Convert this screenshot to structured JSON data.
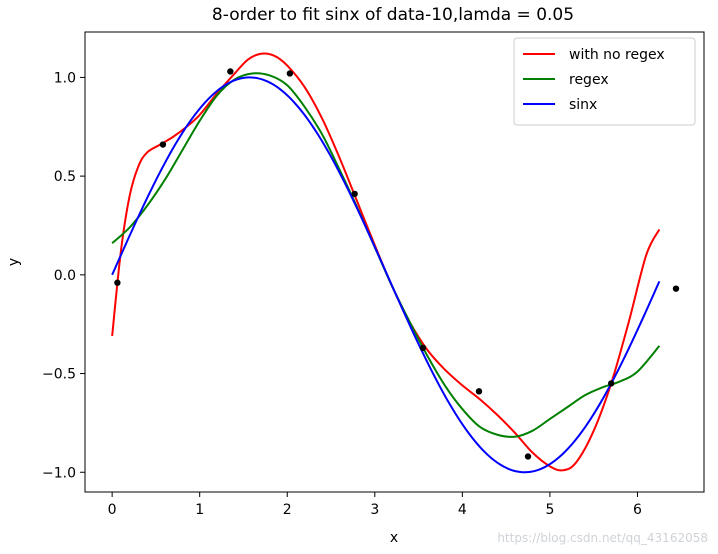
{
  "chart_data": {
    "type": "line",
    "title": "8-order to fit sinx of data-10,lamda = 0.05",
    "xlabel": "x",
    "ylabel": "y",
    "xlim": [
      -0.31,
      6.76
    ],
    "ylim": [
      -1.1,
      1.23
    ],
    "xticks": [
      0,
      1,
      2,
      3,
      4,
      5,
      6
    ],
    "yticks": [
      -1.0,
      -0.5,
      0.0,
      0.5,
      1.0
    ],
    "ytick_labels": [
      "−1.0",
      "−0.5",
      "0.0",
      "0.5",
      "1.0"
    ],
    "grid": false,
    "legend_position": "top-right",
    "series": [
      {
        "name": "with no regex",
        "color": "#ff0000",
        "points": [
          [
            0.0,
            -0.31
          ],
          [
            0.1,
            0.12
          ],
          [
            0.2,
            0.4
          ],
          [
            0.3,
            0.55
          ],
          [
            0.4,
            0.62
          ],
          [
            0.55,
            0.66
          ],
          [
            0.7,
            0.7
          ],
          [
            0.85,
            0.75
          ],
          [
            1.0,
            0.81
          ],
          [
            1.2,
            0.92
          ],
          [
            1.4,
            1.02
          ],
          [
            1.55,
            1.09
          ],
          [
            1.7,
            1.12
          ],
          [
            1.85,
            1.11
          ],
          [
            2.0,
            1.06
          ],
          [
            2.2,
            0.95
          ],
          [
            2.4,
            0.79
          ],
          [
            2.6,
            0.59
          ],
          [
            2.8,
            0.37
          ],
          [
            3.0,
            0.15
          ],
          [
            3.2,
            -0.06
          ],
          [
            3.4,
            -0.24
          ],
          [
            3.6,
            -0.38
          ],
          [
            3.8,
            -0.48
          ],
          [
            4.0,
            -0.56
          ],
          [
            4.2,
            -0.63
          ],
          [
            4.4,
            -0.71
          ],
          [
            4.6,
            -0.8
          ],
          [
            4.8,
            -0.9
          ],
          [
            5.0,
            -0.97
          ],
          [
            5.15,
            -0.99
          ],
          [
            5.3,
            -0.95
          ],
          [
            5.5,
            -0.79
          ],
          [
            5.7,
            -0.55
          ],
          [
            5.9,
            -0.24
          ],
          [
            6.1,
            0.1
          ],
          [
            6.25,
            0.23
          ]
        ]
      },
      {
        "name": "regex",
        "color": "#008000",
        "points": [
          [
            0.0,
            0.16
          ],
          [
            0.2,
            0.24
          ],
          [
            0.4,
            0.35
          ],
          [
            0.6,
            0.48
          ],
          [
            0.8,
            0.63
          ],
          [
            1.0,
            0.78
          ],
          [
            1.2,
            0.91
          ],
          [
            1.4,
            0.99
          ],
          [
            1.6,
            1.02
          ],
          [
            1.8,
            1.01
          ],
          [
            2.0,
            0.96
          ],
          [
            2.2,
            0.85
          ],
          [
            2.4,
            0.71
          ],
          [
            2.6,
            0.53
          ],
          [
            2.8,
            0.34
          ],
          [
            3.0,
            0.14
          ],
          [
            3.2,
            -0.06
          ],
          [
            3.4,
            -0.24
          ],
          [
            3.6,
            -0.41
          ],
          [
            3.8,
            -0.56
          ],
          [
            4.0,
            -0.68
          ],
          [
            4.2,
            -0.77
          ],
          [
            4.4,
            -0.81
          ],
          [
            4.6,
            -0.82
          ],
          [
            4.8,
            -0.79
          ],
          [
            5.0,
            -0.73
          ],
          [
            5.2,
            -0.67
          ],
          [
            5.4,
            -0.61
          ],
          [
            5.6,
            -0.57
          ],
          [
            5.8,
            -0.54
          ],
          [
            6.0,
            -0.49
          ],
          [
            6.25,
            -0.36
          ]
        ]
      },
      {
        "name": "sinx",
        "color": "#0000ff",
        "fn": "sin",
        "x_range": [
          0,
          6.25
        ]
      }
    ],
    "scatter": {
      "color": "#000000",
      "x": [
        0.06,
        0.58,
        1.35,
        2.03,
        2.77,
        3.55,
        4.19,
        4.75,
        5.7,
        6.44
      ],
      "y": [
        -0.04,
        0.66,
        1.03,
        1.02,
        0.41,
        -0.37,
        -0.59,
        -0.92,
        -0.55,
        -0.07
      ]
    }
  },
  "watermark": "https://blog.csdn.net/qq_43162058"
}
